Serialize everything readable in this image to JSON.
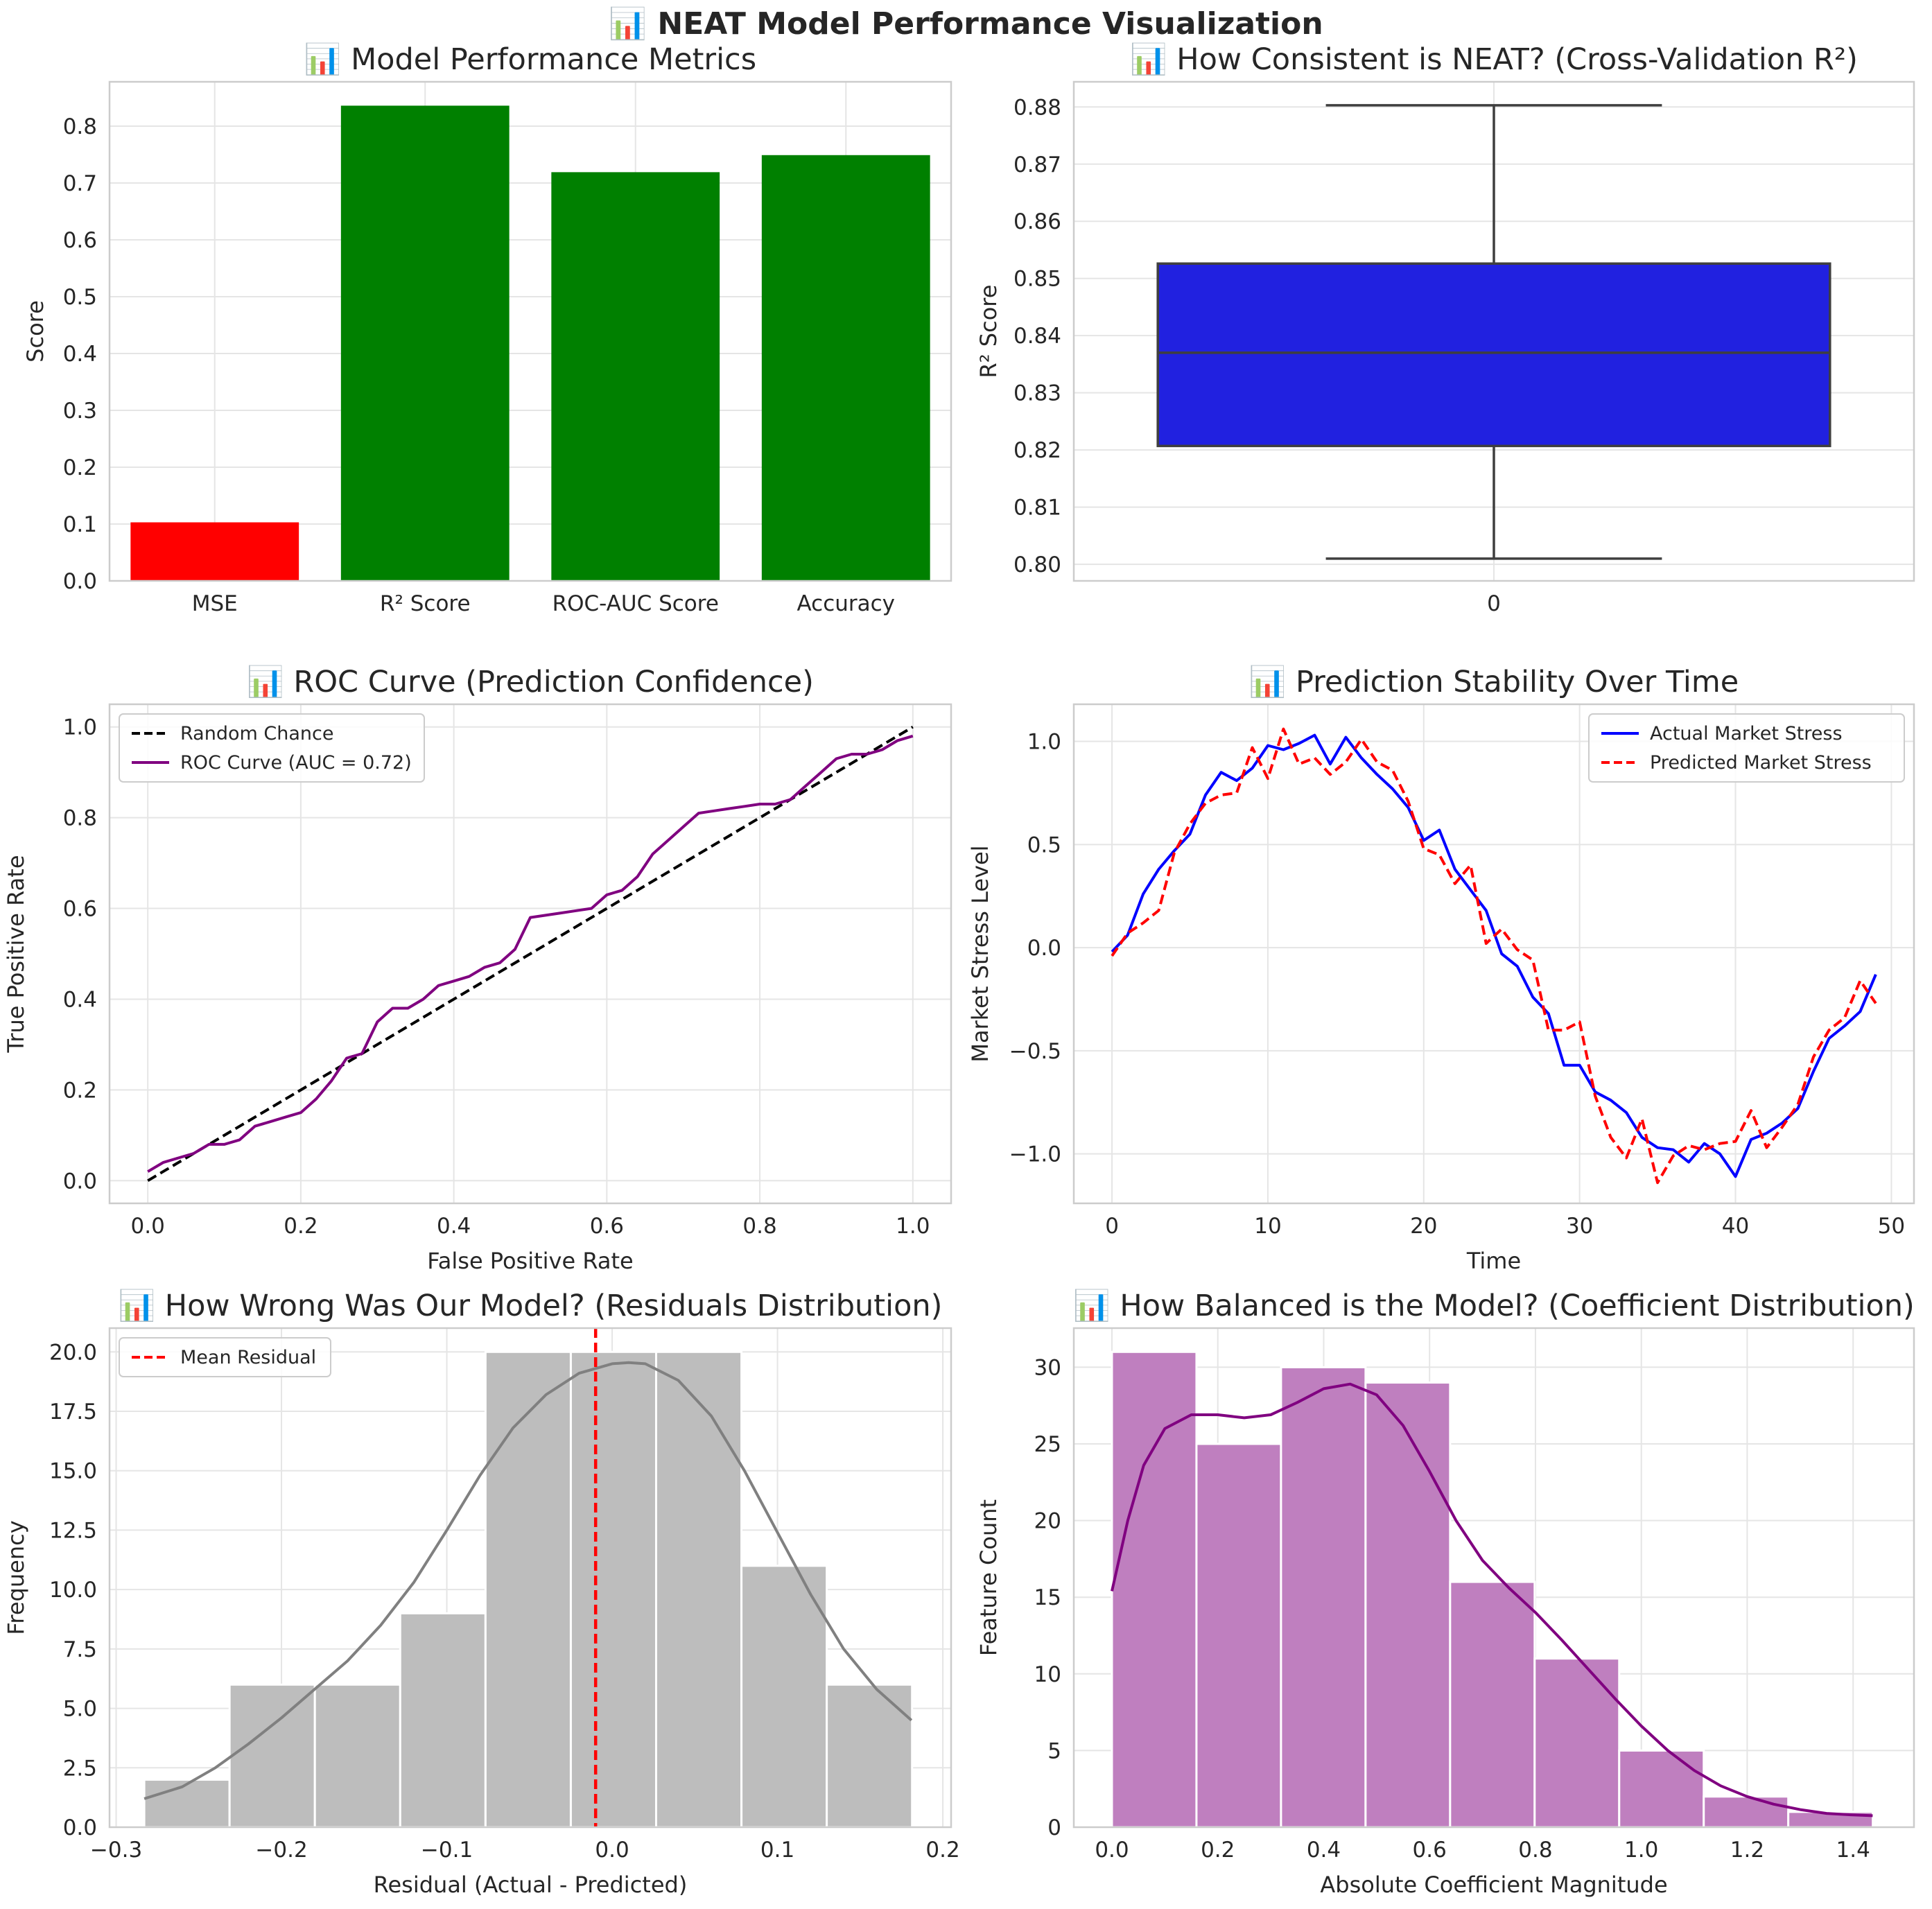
{
  "suptitle": "📊 NEAT Model Performance Visualization",
  "chart_data": [
    {
      "id": "metrics",
      "type": "bar",
      "title": "📊 Model Performance Metrics",
      "xlabel": "",
      "ylabel": "Score",
      "categories": [
        "MSE",
        "R² Score",
        "ROC-AUC Score",
        "Accuracy"
      ],
      "values": [
        0.103,
        0.836,
        0.719,
        0.749
      ],
      "colors": [
        "#ff0000",
        "#008000",
        "#008000",
        "#008000"
      ],
      "ylim": [
        0,
        0.878
      ],
      "yticks": [
        0.0,
        0.1,
        0.2,
        0.3,
        0.4,
        0.5,
        0.6,
        0.7,
        0.8
      ],
      "grid": true
    },
    {
      "id": "cv",
      "type": "box",
      "title": "📊 How Consistent is NEAT? (Cross-Validation R²)",
      "xlabel": "",
      "ylabel": "R² Score",
      "categories": [
        "0"
      ],
      "box": {
        "whisker_low": 0.801,
        "q1": 0.8207,
        "median": 0.837,
        "q3": 0.8526,
        "whisker_high": 0.8803
      },
      "box_color": "#2121e0",
      "ylim": [
        0.7971,
        0.8844
      ],
      "yticks": [
        0.8,
        0.81,
        0.82,
        0.83,
        0.84,
        0.85,
        0.86,
        0.87,
        0.88
      ],
      "grid": true
    },
    {
      "id": "roc",
      "type": "line",
      "title": "📊 ROC Curve (Prediction Confidence)",
      "xlabel": "False Positive Rate",
      "ylabel": "True Positive Rate",
      "xlim": [
        -0.05,
        1.05
      ],
      "ylim": [
        -0.05,
        1.05
      ],
      "xticks": [
        0.0,
        0.2,
        0.4,
        0.6,
        0.8,
        1.0
      ],
      "yticks": [
        0.0,
        0.2,
        0.4,
        0.6,
        0.8,
        1.0
      ],
      "legend_position": "upper-left",
      "series": [
        {
          "name": "Random Chance",
          "color": "#000000",
          "dash": true,
          "x": [
            0,
            1
          ],
          "y": [
            0,
            1
          ]
        },
        {
          "name": "ROC Curve (AUC = 0.72)",
          "color": "#800080",
          "dash": false,
          "x": [
            0.0,
            0.02,
            0.04,
            0.06,
            0.08,
            0.1,
            0.12,
            0.14,
            0.16,
            0.18,
            0.2,
            0.22,
            0.24,
            0.26,
            0.28,
            0.3,
            0.32,
            0.34,
            0.36,
            0.38,
            0.4,
            0.42,
            0.44,
            0.46,
            0.48,
            0.5,
            0.52,
            0.54,
            0.56,
            0.58,
            0.6,
            0.62,
            0.64,
            0.66,
            0.68,
            0.7,
            0.72,
            0.74,
            0.76,
            0.78,
            0.8,
            0.82,
            0.84,
            0.86,
            0.88,
            0.9,
            0.92,
            0.94,
            0.96,
            0.98,
            1.0
          ],
          "y": [
            0.02,
            0.04,
            0.05,
            0.06,
            0.08,
            0.08,
            0.09,
            0.12,
            0.13,
            0.14,
            0.15,
            0.18,
            0.22,
            0.27,
            0.28,
            0.35,
            0.38,
            0.38,
            0.4,
            0.43,
            0.44,
            0.45,
            0.47,
            0.48,
            0.51,
            0.58,
            0.585,
            0.59,
            0.595,
            0.6,
            0.63,
            0.64,
            0.67,
            0.72,
            0.75,
            0.78,
            0.81,
            0.815,
            0.82,
            0.825,
            0.83,
            0.83,
            0.84,
            0.87,
            0.9,
            0.93,
            0.94,
            0.94,
            0.95,
            0.97,
            0.98
          ]
        }
      ],
      "grid": true
    },
    {
      "id": "stability",
      "type": "line",
      "title": "📊 Prediction Stability Over Time",
      "xlabel": "Time",
      "ylabel": "Market Stress Level",
      "xlim": [
        -2.45,
        51.45
      ],
      "ylim": [
        -1.24,
        1.18
      ],
      "xticks": [
        0,
        10,
        20,
        30,
        40,
        50
      ],
      "yticks": [
        -1.0,
        -0.5,
        0.0,
        0.5,
        1.0
      ],
      "yticklabels": [
        "−1.0",
        "−0.5",
        "0.0",
        "0.5",
        "1.0"
      ],
      "legend_position": "upper-right",
      "series": [
        {
          "name": "Actual Market Stress",
          "color": "#0000ff",
          "dash": false,
          "y": [
            -0.02,
            0.06,
            0.26,
            0.38,
            0.47,
            0.55,
            0.74,
            0.85,
            0.81,
            0.87,
            0.98,
            0.96,
            0.99,
            1.03,
            0.89,
            1.02,
            0.92,
            0.84,
            0.77,
            0.68,
            0.52,
            0.57,
            0.38,
            0.28,
            0.18,
            -0.03,
            -0.09,
            -0.24,
            -0.32,
            -0.57,
            -0.57,
            -0.7,
            -0.74,
            -0.8,
            -0.92,
            -0.97,
            -0.98,
            -1.04,
            -0.95,
            -1.0,
            -1.11,
            -0.93,
            -0.9,
            -0.85,
            -0.78,
            -0.6,
            -0.44,
            -0.38,
            -0.31,
            -0.13
          ]
        },
        {
          "name": "Predicted Market Stress",
          "color": "#ff0000",
          "dash": true,
          "y": [
            -0.04,
            0.07,
            0.12,
            0.18,
            0.46,
            0.6,
            0.7,
            0.74,
            0.75,
            0.97,
            0.82,
            1.06,
            0.89,
            0.92,
            0.84,
            0.9,
            1.01,
            0.9,
            0.86,
            0.71,
            0.48,
            0.45,
            0.31,
            0.4,
            0.02,
            0.09,
            -0.01,
            -0.06,
            -0.4,
            -0.4,
            -0.36,
            -0.72,
            -0.92,
            -1.02,
            -0.83,
            -1.14,
            -1.01,
            -0.96,
            -0.98,
            -0.95,
            -0.94,
            -0.79,
            -0.97,
            -0.87,
            -0.76,
            -0.53,
            -0.4,
            -0.34,
            -0.16,
            -0.27
          ]
        }
      ],
      "grid": true
    },
    {
      "id": "residuals",
      "type": "histogram",
      "title": "📊 How Wrong Was Our Model? (Residuals Distribution)",
      "xlabel": "Residual (Actual - Predicted)",
      "ylabel": "Frequency",
      "xlim": [
        -0.304,
        0.205
      ],
      "ylim": [
        0,
        21
      ],
      "xticks": [
        -0.3,
        -0.2,
        -0.1,
        0.0,
        0.1,
        0.2
      ],
      "xticklabels": [
        "−0.3",
        "−0.2",
        "−0.1",
        "0.0",
        "0.1",
        "0.2"
      ],
      "yticks": [
        0.0,
        2.5,
        5.0,
        7.5,
        10.0,
        12.5,
        15.0,
        17.5,
        20.0
      ],
      "bin_edges": [
        -0.283,
        -0.2314,
        -0.1798,
        -0.1282,
        -0.0766,
        -0.025,
        0.0266,
        0.0782,
        0.1298,
        0.1814
      ],
      "counts": [
        2,
        6,
        6,
        9,
        20,
        20,
        20,
        11,
        6
      ],
      "bar_color": "#bdbdbd",
      "kde_color": "#808080",
      "kde_x": [
        -0.283,
        -0.26,
        -0.24,
        -0.22,
        -0.2,
        -0.18,
        -0.16,
        -0.14,
        -0.12,
        -0.1,
        -0.08,
        -0.06,
        -0.04,
        -0.02,
        0.0,
        0.01,
        0.02,
        0.04,
        0.06,
        0.08,
        0.1,
        0.12,
        0.14,
        0.16,
        0.181
      ],
      "kde_y": [
        1.2,
        1.7,
        2.5,
        3.5,
        4.6,
        5.8,
        7.0,
        8.5,
        10.3,
        12.5,
        14.8,
        16.8,
        18.2,
        19.1,
        19.5,
        19.55,
        19.5,
        18.8,
        17.3,
        15.0,
        12.4,
        9.8,
        7.5,
        5.8,
        4.5
      ],
      "mean_line": {
        "x": -0.01,
        "label": "Mean Residual",
        "color": "#ff0000"
      },
      "legend_position": "upper-left",
      "grid": true
    },
    {
      "id": "coefficients",
      "type": "histogram",
      "title": "📊 How Balanced is the Model? (Coefficient Distribution)",
      "xlabel": "Absolute Coefficient Magnitude",
      "ylabel": "Feature Count",
      "xlim": [
        -0.072,
        1.515
      ],
      "ylim": [
        0,
        32.55
      ],
      "xticks": [
        0.0,
        0.2,
        0.4,
        0.6,
        0.8,
        1.0,
        1.2,
        1.4
      ],
      "yticks": [
        0,
        5,
        10,
        15,
        20,
        25,
        30
      ],
      "bin_edges": [
        0.0,
        0.1597,
        0.3194,
        0.4791,
        0.6388,
        0.7985,
        0.9582,
        1.1179,
        1.2776,
        1.4373
      ],
      "counts": [
        31,
        25,
        30,
        29,
        16,
        11,
        5,
        2,
        1
      ],
      "bar_color": "#bf7fbf",
      "kde_color": "#800080",
      "kde_x": [
        0.0,
        0.03,
        0.06,
        0.1,
        0.15,
        0.2,
        0.25,
        0.3,
        0.35,
        0.4,
        0.45,
        0.5,
        0.55,
        0.6,
        0.65,
        0.7,
        0.75,
        0.8,
        0.85,
        0.9,
        0.95,
        1.0,
        1.05,
        1.1,
        1.15,
        1.2,
        1.25,
        1.3,
        1.35,
        1.4,
        1.437
      ],
      "kde_y": [
        15.4,
        20.0,
        23.6,
        26.0,
        26.9,
        26.9,
        26.7,
        26.9,
        27.7,
        28.6,
        28.9,
        28.2,
        26.2,
        23.2,
        20.0,
        17.4,
        15.6,
        14.0,
        12.2,
        10.3,
        8.4,
        6.6,
        5.0,
        3.7,
        2.7,
        2.0,
        1.5,
        1.15,
        0.9,
        0.8,
        0.75
      ],
      "grid": true
    }
  ]
}
